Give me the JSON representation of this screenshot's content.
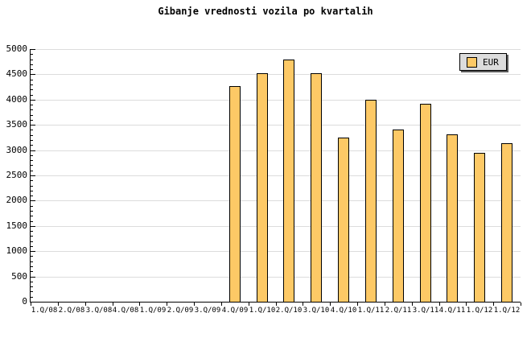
{
  "title": "Gibanje vrednosti vozila po kvartalih",
  "legend": {
    "label": "EUR"
  },
  "colors": {
    "background": "#FFFFFF",
    "bar_fill": "#FDC966",
    "bar_border": "#000000",
    "gridline": "#DCDCDC",
    "axis": "#000000",
    "text": "#000000",
    "legend_bg": "#DCDCDC",
    "legend_border": "#000000",
    "legend_shadow": "#5A5A5A"
  },
  "chart_data": {
    "type": "bar",
    "title": "Gibanje vrednosti vozila po kvartalih",
    "categories": [
      "1.Q/08",
      "2.Q/08",
      "3.Q/08",
      "4.Q/08",
      "1.Q/09",
      "2.Q/09",
      "3.Q/09",
      "4.Q/09",
      "1.Q/10",
      "2.Q/10",
      "3.Q/10",
      "4.Q/10",
      "1.Q/11",
      "2.Q/11",
      "3.Q/11",
      "4.Q/11",
      "1.Q/12",
      "1.Q/12"
    ],
    "series": [
      {
        "name": "EUR",
        "values": [
          null,
          null,
          null,
          null,
          null,
          null,
          null,
          4270,
          4520,
          4790,
          4520,
          3250,
          3990,
          3400,
          3920,
          3320,
          2950,
          3130
        ]
      }
    ],
    "xlabel": "",
    "ylabel": "",
    "ylim": [
      0,
      5000
    ],
    "ytick_interval": 500,
    "yminor_tick_interval": 100,
    "ytick_labels": [
      "0",
      "500",
      "1000",
      "1500",
      "2000",
      "2500",
      "3000",
      "3500",
      "4000",
      "4500",
      "5000"
    ],
    "grid": true,
    "legend_position": "top-right"
  }
}
